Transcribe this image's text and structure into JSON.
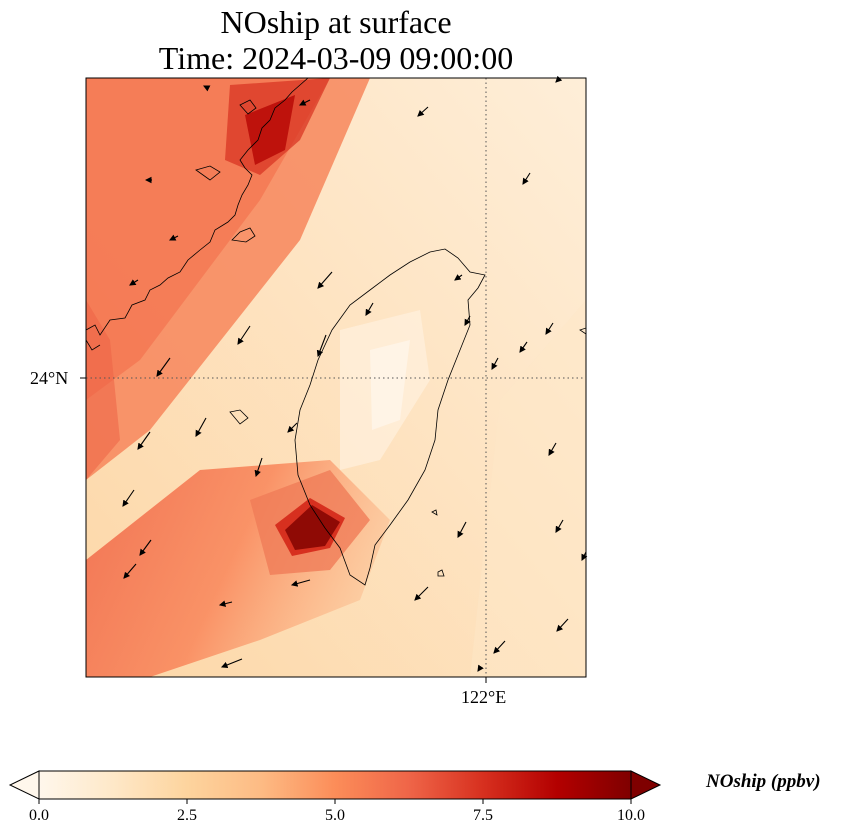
{
  "title": {
    "line1": "NOship at surface",
    "line2": "Time: 2024-03-09 09:00:00"
  },
  "map": {
    "lat_tick": "24°N",
    "lon_tick": "122°E",
    "features": [
      "concentration-field",
      "coastline",
      "wind-vectors",
      "gridlines"
    ]
  },
  "colorbar": {
    "label": "NOship (ppbv)",
    "min": 0.0,
    "max": 10.0,
    "ticks": [
      "0.0",
      "2.5",
      "5.0",
      "7.5",
      "10.0"
    ],
    "colormap": "OrRd",
    "colors": [
      "#fff7ec",
      "#fee8c8",
      "#fdd49e",
      "#fdbb84",
      "#fc8d59",
      "#ef6548",
      "#d7301f",
      "#b30000",
      "#7f0000"
    ]
  }
}
